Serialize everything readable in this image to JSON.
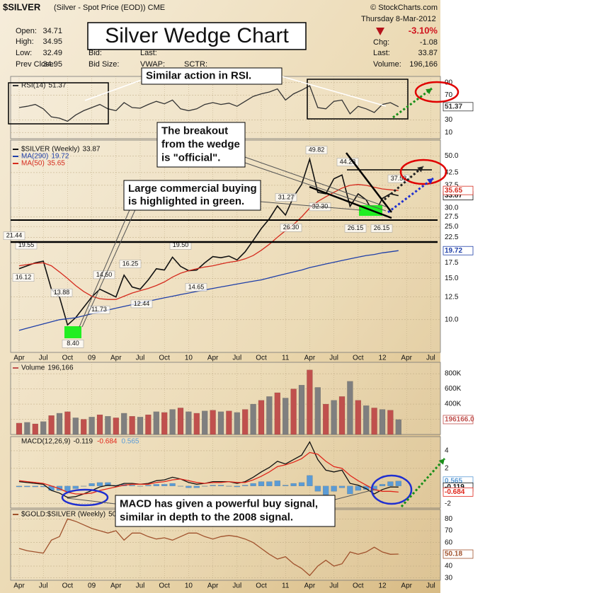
{
  "quote": {
    "symbol": "$SILVER",
    "description": "(Silver - Spot Price (EOD)) CME",
    "copyright": "© StockCharts.com",
    "date": "Thursday 8-Mar-2012",
    "open_label": "Open:",
    "open": "34.71",
    "high_label": "High:",
    "high": "34.95",
    "low_label": "Low:",
    "low": "32.49",
    "prev_close_label": "Prev Close:",
    "prev_close": "34.95",
    "bid_label": "Bid:",
    "bid_size_label": "Bid Size:",
    "last_label_mid": "Last:",
    "vwap_label": "VWAP:",
    "sctr_label": "SCTR:",
    "change_pct": "-3.10%",
    "chg_label": "Chg:",
    "chg": "-1.08",
    "last_label": "Last:",
    "last": "33.87",
    "volume_label": "Volume:",
    "volume": "196,166"
  },
  "annotations": {
    "title": "Silver Wedge Chart",
    "rsi": [
      "Similar action in RSI."
    ],
    "breakout": [
      "The breakout",
      "from the wedge",
      "is \"official\"."
    ],
    "commercial": [
      "Large commercial buying",
      "is highlighted in green."
    ],
    "macd": [
      "MACD has given a powerful buy signal,",
      "similar in depth to the 2008 signal."
    ]
  },
  "chart_data": [
    {
      "type": "line",
      "categories": [
        "Apr",
        null,
        null,
        "Jul",
        null,
        null,
        "Oct",
        null,
        null,
        "09",
        null,
        null,
        "Apr",
        null,
        null,
        "Jul",
        null,
        null,
        "Oct",
        null,
        null,
        "10",
        null,
        null,
        "Apr",
        null,
        null,
        "Jul",
        null,
        null,
        "Oct",
        null,
        null,
        "11",
        null,
        null,
        "Apr",
        null,
        null,
        "Jul",
        null,
        null,
        "Oct",
        null,
        null,
        "12",
        null,
        null,
        "Apr",
        null,
        null,
        "Jul"
      ],
      "series": [
        {
          "name": "RSI(14)",
          "color": "#333333",
          "values": [
            50,
            52,
            55,
            48,
            35,
            33,
            28,
            38,
            45,
            50,
            55,
            48,
            45,
            58,
            50,
            49,
            55,
            60,
            56,
            62,
            48,
            45,
            48,
            55,
            58,
            55,
            57,
            52,
            60,
            68,
            72,
            75,
            80,
            62,
            72,
            78,
            85,
            50,
            48,
            60,
            62,
            40,
            52,
            48,
            42,
            55,
            58,
            51.37,
            null,
            null,
            null,
            null
          ]
        }
      ],
      "ylim": [
        0,
        100
      ],
      "yticks": [
        10,
        30,
        70,
        90
      ],
      "grid": true
    },
    {
      "type": "line",
      "categories": [
        "Apr",
        null,
        null,
        "Jul",
        null,
        null,
        "Oct",
        null,
        null,
        "09",
        null,
        null,
        "Apr",
        null,
        null,
        "Jul",
        null,
        null,
        "Oct",
        null,
        null,
        "10",
        null,
        null,
        "Apr",
        null,
        null,
        "Jul",
        null,
        null,
        "Oct",
        null,
        null,
        "11",
        null,
        null,
        "Apr",
        null,
        null,
        "Jul",
        null,
        null,
        "Oct",
        null,
        null,
        "12",
        null,
        null,
        "Apr",
        null,
        null,
        "Jul"
      ],
      "series": [
        {
          "name": "$SILVER (Weekly)",
          "color": "#111111",
          "values": [
            16.5,
            17.0,
            17.5,
            17.8,
            13.5,
            12.5,
            9.5,
            10.2,
            11.3,
            12.5,
            13.5,
            13.0,
            12.5,
            15.5,
            13.8,
            13.5,
            14.8,
            16.5,
            16.3,
            18.5,
            16.9,
            16.2,
            16.3,
            17.5,
            18.6,
            18.4,
            18.7,
            18.0,
            19.5,
            21.8,
            24.5,
            27.0,
            30.6,
            28.0,
            33.5,
            37.8,
            48.5,
            35.0,
            34.5,
            40.0,
            41.5,
            30.5,
            34.5,
            32.5,
            28.2,
            33.0,
            34.5,
            33.87,
            null,
            null,
            null,
            null
          ]
        },
        {
          "name": "MA(290)",
          "color": "#1f3fa8",
          "values": [
            9.0,
            9.2,
            9.4,
            9.6,
            9.8,
            10.0,
            10.1,
            10.2,
            10.4,
            10.6,
            10.8,
            11.0,
            11.2,
            11.4,
            11.6,
            11.8,
            12.0,
            12.2,
            12.4,
            12.6,
            12.8,
            13.0,
            13.2,
            13.4,
            13.6,
            13.8,
            14.0,
            14.2,
            14.4,
            14.6,
            14.8,
            15.1,
            15.4,
            15.7,
            16.0,
            16.3,
            16.7,
            17.0,
            17.3,
            17.6,
            17.9,
            18.2,
            18.5,
            18.8,
            19.0,
            19.3,
            19.5,
            19.72,
            null,
            null,
            null,
            null
          ]
        },
        {
          "name": "MA(50)",
          "color": "#d52b1e",
          "values": [
            17.0,
            17.2,
            17.4,
            17.5,
            17.0,
            16.0,
            15.0,
            14.0,
            13.2,
            12.6,
            12.3,
            12.2,
            12.2,
            12.6,
            13.0,
            13.3,
            13.6,
            14.0,
            14.5,
            15.2,
            15.8,
            16.2,
            16.5,
            16.8,
            17.0,
            17.3,
            17.6,
            17.8,
            18.2,
            18.8,
            19.8,
            21.0,
            22.5,
            24.0,
            25.5,
            27.5,
            30.0,
            32.0,
            33.5,
            35.0,
            36.5,
            37.5,
            37.8,
            37.5,
            36.8,
            36.2,
            35.9,
            35.65,
            null,
            null,
            null,
            null
          ]
        }
      ],
      "log_scale": true,
      "ylim": [
        7.25,
        58.5
      ],
      "yticks": [
        {
          "value": 10,
          "label": "10.0"
        },
        12.5,
        {
          "value": 15,
          "label": "15.0"
        },
        17.5,
        22.5,
        {
          "value": 25,
          "label": "25.0"
        },
        27.5,
        {
          "value": 30,
          "label": "30.0"
        },
        37.5,
        42.5,
        {
          "value": 50,
          "label": "50.0"
        }
      ],
      "grid": true,
      "price_labels": [
        {
          "value": 21.44,
          "label": "21.44"
        },
        {
          "value": 19.55,
          "label": "19.55"
        },
        {
          "value": 16.12,
          "label": "16.12"
        },
        {
          "value": 13.88,
          "label": "13.88"
        },
        {
          "value": 14.6,
          "label": "14.60"
        },
        {
          "value": 8.4,
          "label": "8.40"
        },
        {
          "value": 11.73,
          "label": "11.73"
        },
        {
          "value": 16.25,
          "label": "16.25"
        },
        {
          "value": 12.44,
          "label": "12.44"
        },
        {
          "value": 19.5,
          "label": "19.50"
        },
        {
          "value": 14.65,
          "label": "14.65"
        },
        {
          "value": 31.27,
          "label": "31.27"
        },
        {
          "value": 26.3,
          "label": "26.30"
        },
        {
          "value": 49.82,
          "label": "49.82"
        },
        {
          "value": 44.28,
          "label": "44.28"
        },
        {
          "value": 32.3,
          "label": "32.30"
        },
        {
          "value": 26.15,
          "label": "26.15"
        },
        {
          "value": 26.15,
          "label": "26.15"
        },
        {
          "value": 37.58,
          "label": "37.58"
        }
      ]
    },
    {
      "type": "bar",
      "categories": [
        "Apr",
        null,
        null,
        "Jul",
        null,
        null,
        "Oct",
        null,
        null,
        "09",
        null,
        null,
        "Apr",
        null,
        null,
        "Jul",
        null,
        null,
        "Oct",
        null,
        null,
        "10",
        null,
        null,
        "Apr",
        null,
        null,
        "Jul",
        null,
        null,
        "Oct",
        null,
        null,
        "11",
        null,
        null,
        "Apr",
        null,
        null,
        "Jul",
        null,
        null,
        "Oct",
        null,
        null,
        "12",
        null,
        null,
        "Apr",
        null,
        null,
        "Jul"
      ],
      "series": [
        {
          "name": "Volume",
          "color": "#c0504d",
          "values": [
            150000,
            160000,
            140000,
            170000,
            250000,
            280000,
            300000,
            220000,
            200000,
            230000,
            260000,
            240000,
            220000,
            280000,
            240000,
            230000,
            260000,
            300000,
            290000,
            330000,
            350000,
            300000,
            280000,
            310000,
            320000,
            300000,
            310000,
            290000,
            330000,
            400000,
            450000,
            500000,
            550000,
            480000,
            600000,
            650000,
            850000,
            620000,
            400000,
            450000,
            500000,
            700000,
            450000,
            380000,
            350000,
            330000,
            320000,
            196166,
            null,
            null,
            null,
            null
          ],
          "value_labels": [
            null,
            null,
            null,
            null,
            null,
            null,
            null,
            null,
            null,
            null,
            null,
            null,
            null,
            null,
            null,
            null,
            null,
            null,
            null,
            null,
            null,
            null,
            null,
            null,
            null,
            null,
            null,
            null,
            null,
            null,
            null,
            null,
            null,
            null,
            null,
            null,
            null,
            null,
            null,
            null,
            null,
            null,
            null,
            null,
            null,
            null,
            null,
            "196166.0",
            null,
            null,
            null,
            null
          ]
        }
      ],
      "ylim": [
        0,
        950000
      ],
      "yticks": [
        {
          "value": 200000,
          "label": "200K"
        },
        {
          "value": 400000,
          "label": "400K"
        },
        {
          "value": 600000,
          "label": "600K"
        },
        {
          "value": 800000,
          "label": "800K"
        }
      ],
      "grid": true
    },
    {
      "type": "line",
      "title": "MACD(12,26,9)",
      "categories": [
        "Apr",
        null,
        null,
        "Jul",
        null,
        null,
        "Oct",
        null,
        null,
        "09",
        null,
        null,
        "Apr",
        null,
        null,
        "Jul",
        null,
        null,
        "Oct",
        null,
        null,
        "10",
        null,
        null,
        "Apr",
        null,
        null,
        "Jul",
        null,
        null,
        "Oct",
        null,
        null,
        "11",
        null,
        null,
        "Apr",
        null,
        null,
        "Jul",
        null,
        null,
        "Oct",
        null,
        null,
        "12",
        null,
        null,
        "Apr",
        null,
        null,
        "Jul"
      ],
      "series": [
        {
          "type": "bar",
          "color": "#5b9bd5",
          "values": [
            -0.1,
            -0.1,
            -0.1,
            -0.1,
            -0.5,
            -0.5,
            -0.6,
            -0.3,
            0.0,
            0.3,
            0.4,
            0.4,
            0.1,
            0.2,
            0.1,
            0.0,
            0.1,
            0.2,
            0.2,
            0.3,
            0.0,
            -0.2,
            -0.2,
            0.0,
            0.1,
            0.1,
            0.0,
            -0.1,
            0.1,
            0.3,
            0.5,
            0.5,
            0.6,
            0.1,
            0.3,
            0.4,
            1.2,
            -0.6,
            -1.0,
            -0.6,
            -0.2,
            -0.9,
            -0.5,
            -0.4,
            -0.5,
            0.2,
            0.5,
            0.565,
            null,
            null,
            null,
            null
          ]
        },
        {
          "color": "#111111",
          "values": [
            0.5,
            0.4,
            0.3,
            0.2,
            -0.5,
            -0.8,
            -1.3,
            -1.2,
            -0.9,
            -0.5,
            -0.1,
            0.1,
            0.0,
            0.3,
            0.3,
            0.2,
            0.3,
            0.6,
            0.7,
            1.0,
            0.8,
            0.4,
            0.2,
            0.3,
            0.5,
            0.5,
            0.5,
            0.3,
            0.5,
            1.0,
            1.6,
            2.1,
            2.8,
            2.5,
            3.0,
            3.5,
            5.0,
            3.0,
            1.8,
            1.6,
            1.8,
            0.3,
            0.1,
            -0.3,
            -0.9,
            -0.4,
            -0.1,
            -0.119,
            null,
            null,
            null,
            null
          ]
        },
        {
          "color": "#e0261b",
          "values": [
            0.6,
            0.5,
            0.4,
            0.3,
            0.0,
            -0.3,
            -0.7,
            -0.9,
            -0.9,
            -0.8,
            -0.5,
            -0.3,
            -0.1,
            0.1,
            0.2,
            0.2,
            0.2,
            0.4,
            0.5,
            0.7,
            0.8,
            0.6,
            0.4,
            0.3,
            0.4,
            0.4,
            0.5,
            0.4,
            0.4,
            0.7,
            1.1,
            1.6,
            2.2,
            2.4,
            2.7,
            3.1,
            3.8,
            3.6,
            2.8,
            2.2,
            2.0,
            1.2,
            0.6,
            0.1,
            -0.4,
            -0.6,
            -0.6,
            -0.684,
            null,
            null,
            null,
            null
          ]
        }
      ],
      "ylim": [
        -2.5,
        5.6
      ],
      "yticks": [
        -2,
        2,
        4
      ],
      "grid": true
    },
    {
      "type": "line",
      "categories": [
        "Apr",
        null,
        null,
        "Jul",
        null,
        null,
        "Oct",
        null,
        null,
        "09",
        null,
        null,
        "Apr",
        null,
        null,
        "Jul",
        null,
        null,
        "Oct",
        null,
        null,
        "10",
        null,
        null,
        "Apr",
        null,
        null,
        "Jul",
        null,
        null,
        "Oct",
        null,
        null,
        "11",
        null,
        null,
        "Apr",
        null,
        null,
        "Jul",
        null,
        null,
        "Oct",
        null,
        null,
        "12",
        null,
        null,
        "Apr",
        null,
        null,
        "Jul"
      ],
      "series": [
        {
          "name": "$GOLD:$SILVER (Weekly)",
          "color": "#a0522d",
          "values": [
            55,
            53,
            52,
            51,
            62,
            65,
            80,
            78,
            75,
            72,
            70,
            68,
            70,
            62,
            68,
            68,
            65,
            63,
            64,
            62,
            65,
            68,
            68,
            65,
            63,
            65,
            66,
            65,
            63,
            60,
            55,
            50,
            46,
            48,
            42,
            38,
            32,
            40,
            45,
            40,
            42,
            52,
            50,
            52,
            56,
            52,
            50,
            50.18,
            null,
            null,
            null,
            null
          ]
        }
      ],
      "ylim": [
        28,
        88
      ],
      "yticks": [
        30,
        40,
        50,
        60,
        70,
        80
      ],
      "grid": true
    }
  ]
}
